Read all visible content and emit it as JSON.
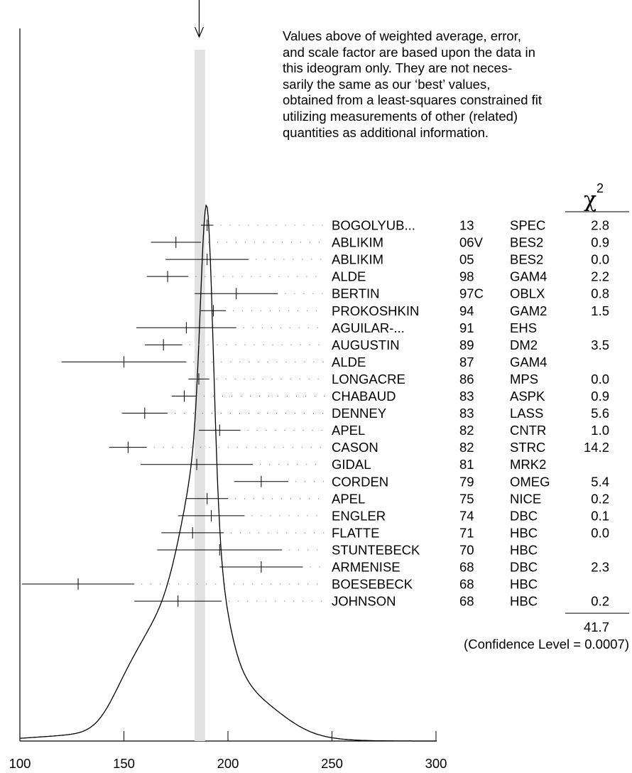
{
  "chart_data": {
    "type": "ideogram",
    "xlim": [
      100,
      300
    ],
    "x_ticks": [
      100,
      150,
      200,
      250,
      300
    ],
    "weighted_average_band": [
      184,
      189
    ],
    "chi2_header": "χ",
    "chi2_header_sup": "2",
    "note": "Values above of weighted average, error,\nand scale factor are based upon the data in\nthis ideogram only.  They are not neces-\nsarily the same as our ‘best’ values,\nobtained from a least-squares constrained fit\nutilizing measurements of other (related)\nquantities as additional information.",
    "measurements": [
      {
        "author": "BOGOLYUB...",
        "year": "13",
        "tech": "SPEC",
        "chi2": "2.8",
        "value": 190,
        "error": 3
      },
      {
        "author": "ABLIKIM",
        "year": "06V",
        "tech": "BES2",
        "chi2": "0.9",
        "value": 175,
        "error": 12
      },
      {
        "author": "ABLIKIM",
        "year": "05",
        "tech": "BES2",
        "chi2": "0.0",
        "value": 190,
        "error": 20
      },
      {
        "author": "ALDE",
        "year": "98",
        "tech": "GAM4",
        "chi2": "2.2",
        "value": 171,
        "error": 10
      },
      {
        "author": "BERTIN",
        "year": "97C",
        "tech": "OBLX",
        "chi2": "0.8",
        "value": 204,
        "error": 20
      },
      {
        "author": "PROKOSHKIN",
        "year": "94",
        "tech": "GAM2",
        "chi2": "1.5",
        "value": 193,
        "error": 6
      },
      {
        "author": "AGUILAR-...",
        "year": "91",
        "tech": "EHS",
        "chi2": "",
        "value": 180,
        "error": 24
      },
      {
        "author": "AUGUSTIN",
        "year": "89",
        "tech": "DM2",
        "chi2": "3.5",
        "value": 169,
        "error": 9
      },
      {
        "author": "ALDE",
        "year": "87",
        "tech": "GAM4",
        "chi2": "",
        "value": 150,
        "error": 30
      },
      {
        "author": "LONGACRE",
        "year": "86",
        "tech": "MPS",
        "chi2": "0.0",
        "value": 186,
        "error": 5
      },
      {
        "author": "CHABAUD",
        "year": "83",
        "tech": "ASPK",
        "chi2": "0.9",
        "value": 179,
        "error": 6
      },
      {
        "author": "DENNEY",
        "year": "83",
        "tech": "LASS",
        "chi2": "5.6",
        "value": 160,
        "error": 11
      },
      {
        "author": "APEL",
        "year": "82",
        "tech": "CNTR",
        "chi2": "1.0",
        "value": 196,
        "error": 10
      },
      {
        "author": "CASON",
        "year": "82",
        "tech": "STRC",
        "chi2": "14.2",
        "value": 152,
        "error": 9
      },
      {
        "author": "GIDAL",
        "year": "81",
        "tech": "MRK2",
        "chi2": "",
        "value": 185,
        "error": 27
      },
      {
        "author": "CORDEN",
        "year": "79",
        "tech": "OMEG",
        "chi2": "5.4",
        "value": 216,
        "error": 13
      },
      {
        "author": "APEL",
        "year": "75",
        "tech": "NICE",
        "chi2": "0.2",
        "value": 190,
        "error": 10
      },
      {
        "author": "ENGLER",
        "year": "74",
        "tech": "DBC",
        "chi2": "0.1",
        "value": 192,
        "error": 16
      },
      {
        "author": "FLATTE",
        "year": "71",
        "tech": "HBC",
        "chi2": "0.0",
        "value": 183,
        "error": 15
      },
      {
        "author": "STUNTEBECK",
        "year": "70",
        "tech": "HBC",
        "chi2": "",
        "value": 196,
        "error": 30
      },
      {
        "author": "ARMENISE",
        "year": "68",
        "tech": "DBC",
        "chi2": "2.3",
        "value": 216,
        "error": 20
      },
      {
        "author": "BOESEBECK",
        "year": "68",
        "tech": "HBC",
        "chi2": "",
        "value": 128,
        "error": 27
      },
      {
        "author": "JOHNSON",
        "year": "68",
        "tech": "HBC",
        "chi2": "0.2",
        "value": 176,
        "error": 21
      }
    ],
    "chi2_total": "41.7",
    "confidence_level": "(Confidence Level = 0.0007)"
  }
}
